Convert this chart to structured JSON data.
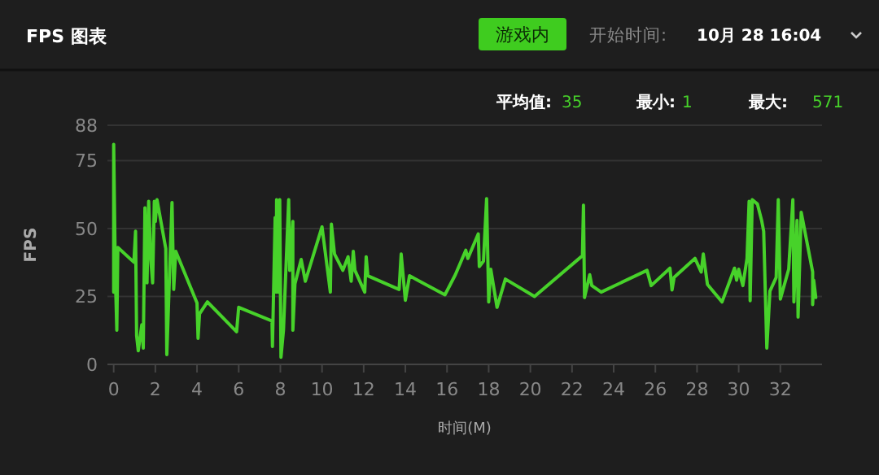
{
  "chart_data": {
    "type": "line",
    "title": "FPS 图表",
    "xlabel": "时间(M)",
    "ylabel": "FPS",
    "annotations": [
      "游戏内",
      "开始时间:",
      "10月 28 16:04",
      "平均值:",
      "35",
      "最小:",
      "1",
      "最大:",
      "571"
    ],
    "xlim": [
      -0.3,
      34
    ],
    "xticks": [
      0,
      2,
      4,
      6,
      8,
      10,
      12,
      14,
      16,
      18,
      20,
      22,
      24,
      26,
      28,
      30,
      32
    ],
    "ylim": [
      0,
      88
    ],
    "yticks": [
      0,
      25,
      50,
      75,
      88
    ],
    "grid": "y",
    "marker": "none",
    "line_style": "solid",
    "series": [
      {
        "color": "#47d22a",
        "x": [
          0,
          0,
          0.08,
          0.15,
          0.2,
          0.97,
          1.05,
          1.1,
          1.18,
          1.35,
          1.42,
          1.5,
          1.6,
          1.68,
          1.78,
          1.87,
          1.95,
          2.0,
          2.08,
          2.5,
          2.55,
          2.8,
          2.88,
          2.98,
          4.0,
          4.05,
          4.12,
          4.5,
          5.9,
          6.0,
          7.6,
          7.62,
          7.75,
          7.8,
          7.82,
          7.9,
          7.97,
          8.03,
          8.15,
          8.4,
          8.45,
          8.6,
          8.6,
          8.7,
          9.0,
          9.2,
          10.0,
          10.4,
          10.45,
          10.6,
          11.0,
          11.25,
          11.4,
          11.5,
          11.58,
          12.05,
          12.12,
          12.2,
          13.7,
          13.8,
          14.0,
          14.2,
          15.9,
          16.4,
          16.9,
          17.0,
          17.5,
          17.55,
          17.75,
          17.9,
          18.0,
          18.1,
          18.4,
          18.8,
          20.2,
          22.5,
          22.55,
          22.6,
          22.85,
          22.95,
          23.4,
          25.6,
          25.8,
          26.7,
          26.8,
          26.9,
          27.9,
          28.2,
          28.3,
          28.5,
          29.2,
          29.8,
          29.9,
          30.0,
          30.2,
          30.4,
          30.5,
          30.55,
          30.65,
          30.9,
          31.1,
          31.2,
          31.35,
          31.5,
          31.8,
          31.9,
          32.0,
          32.4,
          32.6,
          32.65,
          32.8,
          32.85,
          33.0,
          33.55,
          33.55,
          33.6,
          33.7
        ],
        "values": [
          26.6,
          81,
          33,
          12.6,
          43,
          37.6,
          49,
          10.6,
          5,
          14.6,
          6,
          57.6,
          30,
          60,
          38.6,
          30,
          60,
          52.6,
          60.6,
          42.6,
          3.6,
          59.6,
          27.6,
          41.6,
          22.6,
          9.6,
          18.6,
          23,
          12,
          21,
          16,
          6.6,
          54,
          26.6,
          60.6,
          26.6,
          60.6,
          2.6,
          12.6,
          60.6,
          34.6,
          52.6,
          12.6,
          29.6,
          38.6,
          30.6,
          50.6,
          26.6,
          51.6,
          40.6,
          34.6,
          39.6,
          30.6,
          41.6,
          34.6,
          26.6,
          39.6,
          32.6,
          27.6,
          40.6,
          23.6,
          32.6,
          25.6,
          33,
          42,
          39,
          48,
          36,
          38,
          61,
          23,
          35,
          21,
          31.4,
          25,
          40,
          58.6,
          24.6,
          33,
          29,
          26.6,
          34.6,
          29,
          35.4,
          27.4,
          32,
          39,
          34,
          40.6,
          29.4,
          23,
          35.4,
          31,
          35,
          29,
          39,
          60,
          23.4,
          60.6,
          59,
          53,
          49,
          6,
          27,
          32,
          60.6,
          24,
          35,
          60.6,
          23,
          53,
          17.4,
          56,
          34,
          22,
          31,
          24.6
        ]
      }
    ]
  }
}
